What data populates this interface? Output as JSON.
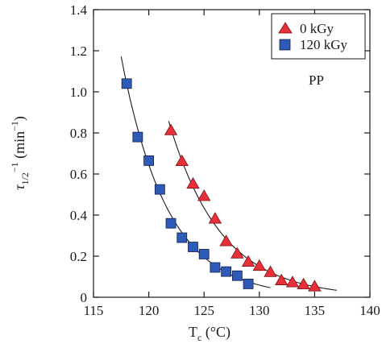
{
  "chart_data": {
    "type": "scatter",
    "xlabel": {
      "main": "T",
      "sub": "c",
      "rest": " (°C)"
    },
    "ylabel": {
      "main": "τ",
      "sub": "1/2",
      "sup": "−1",
      "rest": " (min",
      "rest_sup": "−1",
      "close": ")"
    },
    "xlim": [
      115,
      140
    ],
    "ylim": [
      0,
      1.4
    ],
    "xticks": [
      "115",
      "120",
      "125",
      "130",
      "135",
      "140"
    ],
    "yticks": [
      "0",
      "0.2",
      "0.4",
      "0.6",
      "0.8",
      "1.0",
      "1.2",
      "1.4"
    ],
    "grid": false,
    "legend_position": "top-right",
    "annotation": "PP",
    "series": [
      {
        "name": "0 kGy",
        "marker": "triangle",
        "color": "#e8303a",
        "x": [
          122,
          123,
          124,
          125,
          126,
          127,
          128,
          129,
          130,
          131,
          132,
          133,
          134,
          135
        ],
        "y": [
          0.81,
          0.66,
          0.55,
          0.49,
          0.38,
          0.27,
          0.21,
          0.17,
          0.15,
          0.12,
          0.08,
          0.07,
          0.06,
          0.05
        ],
        "fit": {
          "x_start": 121.8,
          "x_end": 137,
          "a": 0.822,
          "k": 0.2125,
          "x0": 122
        }
      },
      {
        "name": "120 kGy",
        "marker": "square",
        "color": "#2f5bb8",
        "x": [
          118,
          119,
          120,
          121,
          122,
          123,
          124,
          125,
          126,
          127,
          128,
          129
        ],
        "y": [
          1.04,
          0.78,
          0.665,
          0.525,
          0.36,
          0.29,
          0.245,
          0.21,
          0.145,
          0.125,
          0.105,
          0.065
        ],
        "fit": {
          "x_start": 117.5,
          "x_end": 131,
          "a": 1.04,
          "k": 0.239,
          "x0": 118
        }
      }
    ]
  }
}
